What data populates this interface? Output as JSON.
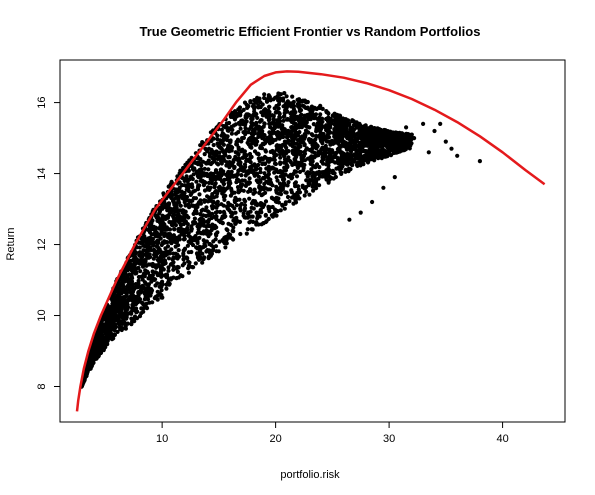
{
  "chart_data": {
    "type": "scatter",
    "title": "True Geometric Efficient Frontier vs Random Portfolios",
    "xlabel": "portfolio.risk",
    "ylabel": "Return",
    "xlim": [
      1.0,
      45.5
    ],
    "ylim": [
      7.0,
      17.2
    ],
    "x_ticks": [
      10,
      20,
      30,
      40
    ],
    "y_ticks": [
      8,
      10,
      12,
      14,
      16
    ],
    "grid": false,
    "legend": "none",
    "colors": {
      "points": "#000000",
      "frontier": "#e41a1c",
      "frame": "#000000"
    },
    "series": [
      {
        "type": "line",
        "color": "#e41a1c",
        "points": [
          [
            2.5,
            7.3
          ],
          [
            2.6,
            7.6
          ],
          [
            2.8,
            8.0
          ],
          [
            3.1,
            8.5
          ],
          [
            3.5,
            9.0
          ],
          [
            4.0,
            9.5
          ],
          [
            4.6,
            10.0
          ],
          [
            5.3,
            10.5
          ],
          [
            6.0,
            11.0
          ],
          [
            6.8,
            11.5
          ],
          [
            7.6,
            12.0
          ],
          [
            8.5,
            12.5
          ],
          [
            9.4,
            13.0
          ],
          [
            10.6,
            13.5
          ],
          [
            11.8,
            14.0
          ],
          [
            13.0,
            14.5
          ],
          [
            14.2,
            15.0
          ],
          [
            15.4,
            15.5
          ],
          [
            16.5,
            16.0
          ],
          [
            17.8,
            16.5
          ],
          [
            19.0,
            16.75
          ],
          [
            20.0,
            16.85
          ],
          [
            21.0,
            16.88
          ],
          [
            22.0,
            16.87
          ],
          [
            24.0,
            16.8
          ],
          [
            26.0,
            16.7
          ],
          [
            28.0,
            16.55
          ],
          [
            30.0,
            16.35
          ],
          [
            32.0,
            16.1
          ],
          [
            34.0,
            15.8
          ],
          [
            36.0,
            15.45
          ],
          [
            38.0,
            15.05
          ],
          [
            40.0,
            14.6
          ],
          [
            42.0,
            14.1
          ],
          [
            43.7,
            13.7
          ]
        ]
      },
      {
        "type": "scatter",
        "color": "#000000",
        "description_of_cloud_boundary": "dense random-portfolio cloud below the frontier",
        "upper_boundary": [
          [
            2.9,
            8.0
          ],
          [
            3.5,
            8.9
          ],
          [
            4.5,
            9.8
          ],
          [
            6.0,
            11.0
          ],
          [
            8.0,
            12.3
          ],
          [
            10.0,
            13.4
          ],
          [
            12.0,
            14.3
          ],
          [
            14.0,
            15.1
          ],
          [
            16.0,
            15.7
          ],
          [
            17.5,
            16.05
          ],
          [
            19.0,
            16.25
          ],
          [
            20.5,
            16.3
          ],
          [
            22.0,
            16.15
          ],
          [
            24.0,
            15.9
          ],
          [
            26.0,
            15.6
          ],
          [
            28.0,
            15.35
          ],
          [
            30.0,
            15.2
          ],
          [
            32.0,
            15.1
          ]
        ],
        "lower_boundary": [
          [
            2.9,
            8.0
          ],
          [
            3.5,
            8.4
          ],
          [
            4.5,
            8.9
          ],
          [
            6.0,
            9.4
          ],
          [
            8.0,
            9.9
          ],
          [
            10.0,
            10.5
          ],
          [
            12.0,
            11.1
          ],
          [
            14.0,
            11.6
          ],
          [
            16.0,
            12.0
          ],
          [
            18.0,
            12.4
          ],
          [
            20.0,
            12.8
          ],
          [
            22.0,
            13.2
          ],
          [
            24.0,
            13.6
          ],
          [
            26.0,
            14.0
          ],
          [
            28.0,
            14.3
          ],
          [
            30.0,
            14.5
          ],
          [
            32.0,
            14.7
          ]
        ],
        "outliers": [
          [
            31.5,
            15.3
          ],
          [
            32.2,
            15.0
          ],
          [
            33.0,
            15.4
          ],
          [
            33.5,
            14.6
          ],
          [
            34.0,
            15.2
          ],
          [
            34.5,
            15.4
          ],
          [
            35.0,
            14.9
          ],
          [
            35.5,
            14.7
          ],
          [
            36.0,
            14.5
          ],
          [
            38.0,
            14.35
          ],
          [
            30.5,
            13.9
          ],
          [
            29.5,
            13.6
          ],
          [
            28.5,
            13.2
          ],
          [
            27.5,
            12.9
          ],
          [
            26.5,
            12.7
          ]
        ]
      }
    ]
  }
}
